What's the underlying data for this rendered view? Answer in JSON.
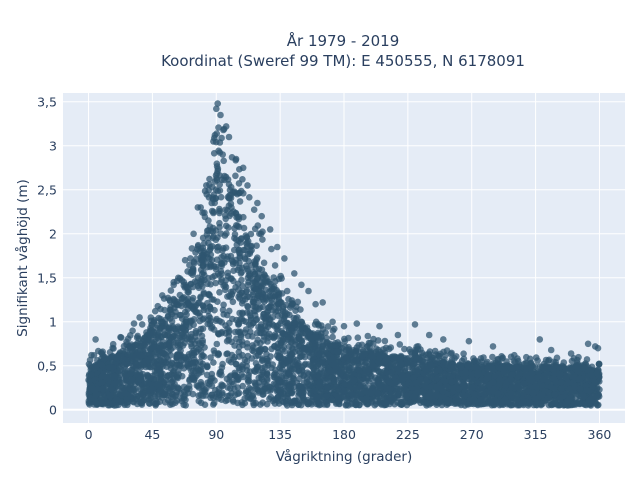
{
  "chart_data": {
    "type": "scatter",
    "title": "År 1979 - 2019",
    "subtitle": "Koordinat (Sweref 99 TM): E 450555, N 6178091",
    "xlabel": "Vågriktning (grader)",
    "ylabel": "Signifikant våghöjd (m)",
    "xlim": [
      -18,
      378
    ],
    "ylim": [
      -0.15,
      3.6
    ],
    "xticks": [
      0,
      45,
      90,
      135,
      180,
      225,
      270,
      315,
      360
    ],
    "xtick_labels": [
      "0",
      "45",
      "90",
      "135",
      "180",
      "225",
      "270",
      "315",
      "360"
    ],
    "yticks": [
      0,
      0.5,
      1,
      1.5,
      2,
      2.5,
      3,
      3.5
    ],
    "ytick_labels": [
      "0",
      "0,5",
      "1",
      "1,5",
      "2",
      "2,5",
      "3",
      "3,5"
    ],
    "grid": true,
    "marker_color": "#2f5670",
    "background": "#e5ecf6",
    "envelope": {
      "x": [
        0,
        10,
        20,
        30,
        40,
        50,
        60,
        70,
        80,
        85,
        90,
        95,
        100,
        105,
        110,
        120,
        130,
        140,
        150,
        160,
        170,
        180,
        195,
        210,
        225,
        240,
        255,
        270,
        285,
        300,
        315,
        330,
        345,
        360
      ],
      "y_max": [
        0.6,
        0.7,
        0.8,
        0.9,
        1.05,
        1.2,
        1.45,
        1.75,
        2.3,
        2.8,
        3.4,
        3.25,
        3.0,
        2.8,
        2.6,
        2.15,
        1.8,
        1.45,
        1.2,
        1.05,
        0.95,
        0.9,
        0.85,
        0.8,
        0.75,
        0.7,
        0.68,
        0.65,
        0.62,
        0.6,
        0.6,
        0.6,
        0.6,
        0.55
      ],
      "y_dense": [
        0.45,
        0.55,
        0.62,
        0.7,
        0.82,
        0.95,
        1.15,
        1.45,
        1.85,
        2.25,
        2.75,
        2.7,
        2.45,
        2.2,
        2.0,
        1.65,
        1.35,
        1.1,
        0.95,
        0.82,
        0.75,
        0.7,
        0.65,
        0.62,
        0.58,
        0.55,
        0.52,
        0.5,
        0.5,
        0.48,
        0.48,
        0.48,
        0.48,
        0.45
      ]
    },
    "outliers": [
      {
        "x": 2,
        "y": 0.62
      },
      {
        "x": 5,
        "y": 0.8
      },
      {
        "x": 10,
        "y": 0.66
      },
      {
        "x": 23,
        "y": 0.82
      },
      {
        "x": 32,
        "y": 0.98
      },
      {
        "x": 36,
        "y": 1.05
      },
      {
        "x": 47,
        "y": 1.12
      },
      {
        "x": 52,
        "y": 1.3
      },
      {
        "x": 60,
        "y": 1.45
      },
      {
        "x": 68,
        "y": 1.7
      },
      {
        "x": 74,
        "y": 2.0
      },
      {
        "x": 77,
        "y": 2.3
      },
      {
        "x": 79,
        "y": 2.3
      },
      {
        "x": 83,
        "y": 2.55
      },
      {
        "x": 88,
        "y": 3.05
      },
      {
        "x": 89,
        "y": 3.12
      },
      {
        "x": 90,
        "y": 3.42
      },
      {
        "x": 91,
        "y": 3.48
      },
      {
        "x": 93,
        "y": 3.35
      },
      {
        "x": 95,
        "y": 3.18
      },
      {
        "x": 97,
        "y": 3.22
      },
      {
        "x": 99,
        "y": 3.1
      },
      {
        "x": 104,
        "y": 2.85
      },
      {
        "x": 109,
        "y": 2.75
      },
      {
        "x": 112,
        "y": 2.55
      },
      {
        "x": 119,
        "y": 2.35
      },
      {
        "x": 122,
        "y": 2.2
      },
      {
        "x": 128,
        "y": 2.05
      },
      {
        "x": 133,
        "y": 1.85
      },
      {
        "x": 138,
        "y": 1.72
      },
      {
        "x": 145,
        "y": 1.55
      },
      {
        "x": 150,
        "y": 1.42
      },
      {
        "x": 155,
        "y": 1.35
      },
      {
        "x": 160,
        "y": 1.2
      },
      {
        "x": 165,
        "y": 1.22
      },
      {
        "x": 172,
        "y": 1.0
      },
      {
        "x": 180,
        "y": 0.95
      },
      {
        "x": 189,
        "y": 0.98
      },
      {
        "x": 205,
        "y": 0.95
      },
      {
        "x": 218,
        "y": 0.85
      },
      {
        "x": 230,
        "y": 0.97
      },
      {
        "x": 240,
        "y": 0.85
      },
      {
        "x": 250,
        "y": 0.8
      },
      {
        "x": 268,
        "y": 0.78
      },
      {
        "x": 285,
        "y": 0.72
      },
      {
        "x": 300,
        "y": 0.62
      },
      {
        "x": 318,
        "y": 0.8
      },
      {
        "x": 326,
        "y": 0.68
      },
      {
        "x": 340,
        "y": 0.64
      },
      {
        "x": 352,
        "y": 0.75
      },
      {
        "x": 357,
        "y": 0.72
      },
      {
        "x": 359,
        "y": 0.7
      }
    ]
  }
}
